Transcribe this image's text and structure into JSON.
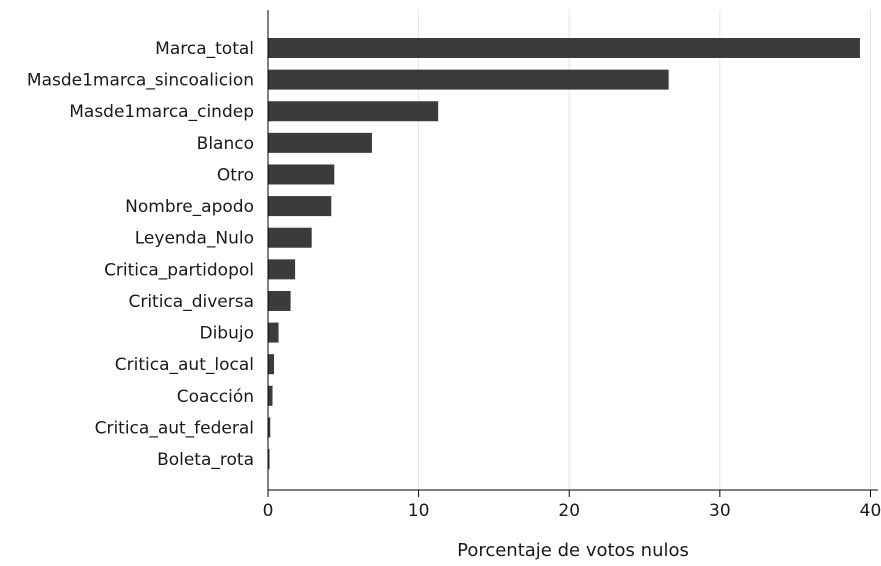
{
  "chart_data": {
    "type": "bar",
    "orientation": "horizontal",
    "categories": [
      "Marca_total",
      "Masde1marca_sincoalicion",
      "Masde1marca_cindep",
      "Blanco",
      "Otro",
      "Nombre_apodo",
      "Leyenda_Nulo",
      "Critica_partidopol",
      "Critica_diversa",
      "Dibujo",
      "Critica_aut_local",
      "Coacción",
      "Critica_aut_federal",
      "Boleta_rota"
    ],
    "values": [
      39.3,
      26.6,
      11.3,
      6.9,
      4.4,
      4.2,
      2.9,
      1.8,
      1.5,
      0.7,
      0.4,
      0.3,
      0.15,
      0.1
    ],
    "xlabel": "Porcentaje de votos nulos",
    "ylabel": "",
    "xlim": [
      0,
      40.5
    ],
    "xticks": [
      0,
      10,
      20,
      30,
      40
    ],
    "xtick_labels": [
      "0",
      "10",
      "20",
      "30",
      "40"
    ],
    "grid": "vertical",
    "bar_color": "#3b3b3b",
    "legend": "none"
  }
}
